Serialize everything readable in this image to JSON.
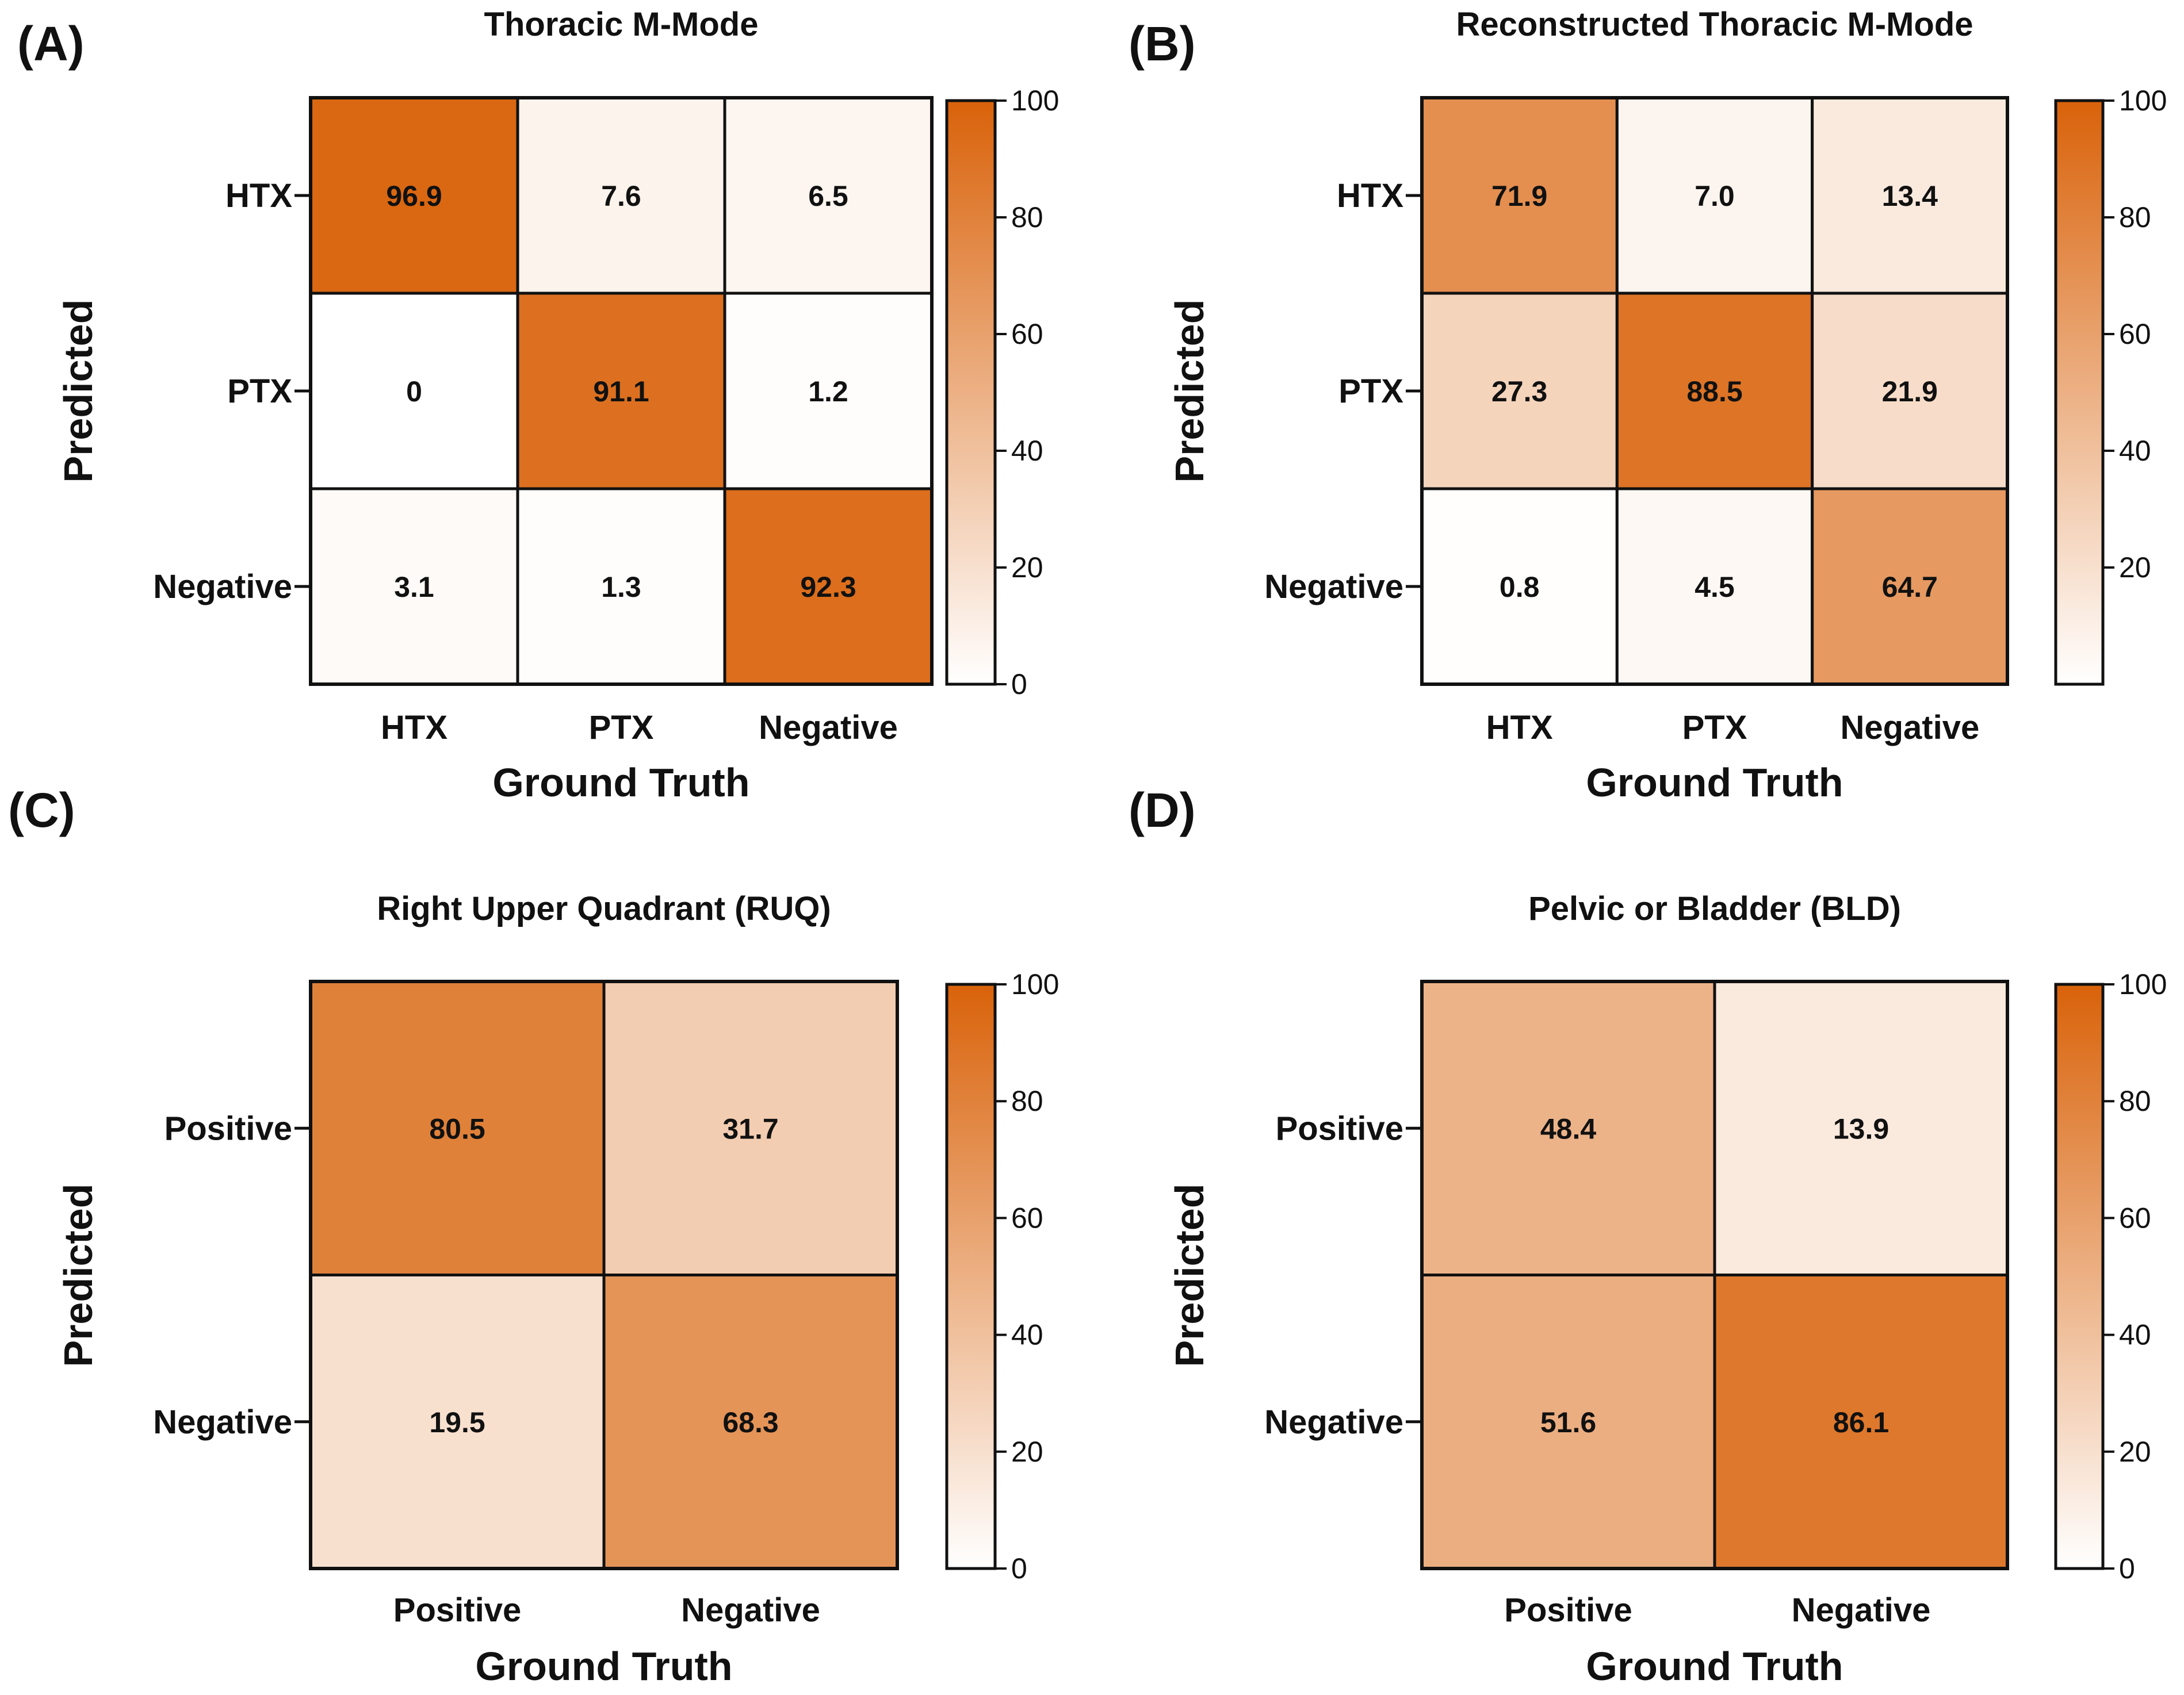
{
  "colors": {
    "low": "#ffffff",
    "high": "#d9620a",
    "border": "#111111"
  },
  "chart_data": [
    {
      "type": "heatmap",
      "panel_label": "(A)",
      "title": "Thoracic  M-Mode",
      "xlabel": "Ground Truth",
      "ylabel": "Predicted",
      "x_categories": [
        "HTX",
        "PTX",
        "Negative"
      ],
      "y_categories": [
        "HTX",
        "PTX",
        "Negative"
      ],
      "values": [
        [
          96.9,
          7.6,
          6.5
        ],
        [
          0,
          91.1,
          1.2
        ],
        [
          3.1,
          1.3,
          92.3
        ]
      ],
      "value_labels": [
        [
          "96.9",
          "7.6",
          "6.5"
        ],
        [
          "0",
          "91.1",
          "1.2"
        ],
        [
          "3.1",
          "1.3",
          "92.3"
        ]
      ],
      "colorbar": {
        "range": [
          0,
          100
        ],
        "ticks": [
          "0",
          "20",
          "40",
          "60",
          "80",
          "100"
        ]
      }
    },
    {
      "type": "heatmap",
      "panel_label": "(B)",
      "title": "Reconstructed Thoracic M-Mode",
      "xlabel": "Ground Truth",
      "ylabel": "Predicted",
      "x_categories": [
        "HTX",
        "PTX",
        "Negative"
      ],
      "y_categories": [
        "HTX",
        "PTX",
        "Negative"
      ],
      "values": [
        [
          71.9,
          7.0,
          13.4
        ],
        [
          27.3,
          88.5,
          21.9
        ],
        [
          0.8,
          4.5,
          64.7
        ]
      ],
      "value_labels": [
        [
          "71.9",
          "7.0",
          "13.4"
        ],
        [
          "27.3",
          "88.5",
          "21.9"
        ],
        [
          "0.8",
          "4.5",
          "64.7"
        ]
      ],
      "colorbar": {
        "range": [
          0,
          100
        ],
        "ticks": [
          "20",
          "40",
          "60",
          "80",
          "100"
        ]
      }
    },
    {
      "type": "heatmap",
      "panel_label": "(C)",
      "title": "Right Upper Quadrant (RUQ)",
      "xlabel": "Ground Truth",
      "ylabel": "Predicted",
      "x_categories": [
        "Positive",
        "Negative"
      ],
      "y_categories": [
        "Positive",
        "Negative"
      ],
      "values": [
        [
          80.5,
          31.7
        ],
        [
          19.5,
          68.3
        ]
      ],
      "value_labels": [
        [
          "80.5",
          "31.7"
        ],
        [
          "19.5",
          "68.3"
        ]
      ],
      "colorbar": {
        "range": [
          0,
          100
        ],
        "ticks": [
          "0",
          "20",
          "40",
          "60",
          "80",
          "100"
        ]
      }
    },
    {
      "type": "heatmap",
      "panel_label": "(D)",
      "title": "Pelvic or Bladder (BLD)",
      "xlabel": "Ground Truth",
      "ylabel": "Predicted",
      "x_categories": [
        "Positive",
        "Negative"
      ],
      "y_categories": [
        "Positive",
        "Negative"
      ],
      "values": [
        [
          48.4,
          13.9
        ],
        [
          51.6,
          86.1
        ]
      ],
      "value_labels": [
        [
          "48.4",
          "13.9"
        ],
        [
          "51.6",
          "86.1"
        ]
      ],
      "colorbar": {
        "range": [
          0,
          100
        ],
        "ticks": [
          "0",
          "20",
          "40",
          "60",
          "80",
          "100"
        ]
      }
    }
  ]
}
